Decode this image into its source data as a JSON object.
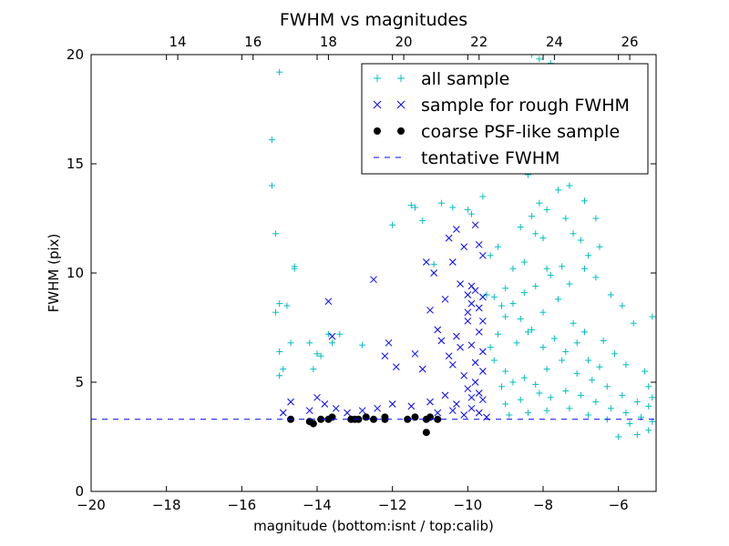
{
  "chart_data": {
    "type": "scatter",
    "title": "FWHM vs magnitudes",
    "xlabel": "magnitude (bottom:isnt / top:calib)",
    "ylabel": "FWHM (pix)",
    "xlim": [
      -20,
      -5
    ],
    "ylim": [
      0,
      20
    ],
    "xticks": [
      -20,
      -18,
      -16,
      -14,
      -12,
      -10,
      -8,
      -6
    ],
    "xtick_labels": [
      "−20",
      "−18",
      "−16",
      "−14",
      "−12",
      "−10",
      "−8",
      "−6"
    ],
    "yticks": [
      0,
      5,
      10,
      15,
      20
    ],
    "ytick_labels": [
      "0",
      "5",
      "10",
      "15",
      "20"
    ],
    "top_axis": {
      "offset_from_bottom": 31.7,
      "ticks": [
        14,
        16,
        18,
        20,
        22,
        24,
        26
      ],
      "tick_labels": [
        "14",
        "16",
        "18",
        "20",
        "22",
        "24",
        "26"
      ]
    },
    "legend": {
      "placement": "top-right",
      "entries": [
        {
          "label": "all sample",
          "marker": "+",
          "color": "#00bfbf"
        },
        {
          "label": "sample for rough FWHM",
          "marker": "x",
          "color": "#0000ff"
        },
        {
          "label": "coarse PSF-like sample",
          "marker": "o",
          "color": "#000000"
        },
        {
          "label": "tentative FWHM",
          "marker": "dashed-line",
          "color": "#0000ff"
        }
      ]
    },
    "tentative_fwhm": 3.3,
    "series": [
      {
        "name": "all sample",
        "marker": "+",
        "color": "#00bfbf",
        "points": [
          [
            -15.2,
            16.1
          ],
          [
            -15.0,
            19.2
          ],
          [
            -15.2,
            14.0
          ],
          [
            -15.1,
            11.8
          ],
          [
            -14.8,
            8.5
          ],
          [
            -15.0,
            8.6
          ],
          [
            -15.1,
            8.2
          ],
          [
            -14.7,
            6.8
          ],
          [
            -15.0,
            6.4
          ],
          [
            -14.6,
            10.3
          ],
          [
            -14.6,
            10.2
          ],
          [
            -14.9,
            5.6
          ],
          [
            -15.0,
            5.3
          ],
          [
            -14.2,
            6.8
          ],
          [
            -14.0,
            6.3
          ],
          [
            -13.9,
            6.2
          ],
          [
            -14.1,
            5.6
          ],
          [
            -13.7,
            7.2
          ],
          [
            -13.4,
            7.2
          ],
          [
            -13.6,
            6.8
          ],
          [
            -12.8,
            6.7
          ],
          [
            -12.0,
            12.2
          ],
          [
            -11.4,
            13.0
          ],
          [
            -11.5,
            13.1
          ],
          [
            -11.2,
            12.4
          ],
          [
            -10.9,
            10.4
          ],
          [
            -10.7,
            13.2
          ],
          [
            -10.4,
            13.0
          ],
          [
            -10.0,
            12.9
          ],
          [
            -9.9,
            12.7
          ],
          [
            -9.6,
            13.5
          ],
          [
            -8.3,
            20.0
          ],
          [
            -8.1,
            19.8
          ],
          [
            -7.8,
            19.6
          ],
          [
            -7.2,
            19.4
          ],
          [
            -9.5,
            9.0
          ],
          [
            -9.3,
            8.9
          ],
          [
            -9.1,
            8.5
          ],
          [
            -9.0,
            9.3
          ],
          [
            -8.8,
            10.2
          ],
          [
            -8.5,
            10.5
          ],
          [
            -8.2,
            11.8
          ],
          [
            -8.0,
            11.6
          ],
          [
            -7.9,
            12.9
          ],
          [
            -7.6,
            13.8
          ],
          [
            -7.4,
            12.5
          ],
          [
            -7.2,
            11.8
          ],
          [
            -7.0,
            11.5
          ],
          [
            -6.8,
            10.8
          ],
          [
            -6.6,
            12.5
          ],
          [
            -6.5,
            11.2
          ],
          [
            -8.9,
            14.8
          ],
          [
            -8.7,
            15.2
          ],
          [
            -8.4,
            14.5
          ],
          [
            -8.1,
            13.2
          ],
          [
            -7.7,
            16.5
          ],
          [
            -7.5,
            15.0
          ],
          [
            -7.3,
            14.0
          ],
          [
            -6.9,
            13.3
          ],
          [
            -9.4,
            10.8
          ],
          [
            -9.2,
            11.2
          ],
          [
            -8.6,
            12.1
          ],
          [
            -8.3,
            12.6
          ],
          [
            -7.9,
            10.2
          ],
          [
            -9.3,
            6.0
          ],
          [
            -9.0,
            5.5
          ],
          [
            -8.7,
            6.8
          ],
          [
            -8.4,
            7.3
          ],
          [
            -8.0,
            8.2
          ],
          [
            -7.6,
            8.8
          ],
          [
            -7.3,
            9.5
          ],
          [
            -6.9,
            10.2
          ],
          [
            -6.6,
            9.8
          ],
          [
            -6.2,
            9.0
          ],
          [
            -5.9,
            8.5
          ],
          [
            -5.6,
            7.7
          ],
          [
            -5.1,
            8.0
          ],
          [
            -9.1,
            4.8
          ],
          [
            -8.8,
            5.0
          ],
          [
            -8.5,
            5.2
          ],
          [
            -8.2,
            4.9
          ],
          [
            -7.9,
            5.6
          ],
          [
            -7.5,
            6.0
          ],
          [
            -7.1,
            5.4
          ],
          [
            -6.7,
            5.1
          ],
          [
            -6.3,
            4.8
          ],
          [
            -5.9,
            4.4
          ],
          [
            -5.5,
            4.1
          ],
          [
            -5.2,
            3.9
          ],
          [
            -9.0,
            4.0
          ],
          [
            -8.6,
            4.2
          ],
          [
            -8.1,
            4.5
          ],
          [
            -7.8,
            4.3
          ],
          [
            -7.4,
            4.6
          ],
          [
            -7.0,
            4.4
          ],
          [
            -6.6,
            4.1
          ],
          [
            -6.2,
            3.8
          ],
          [
            -5.8,
            3.6
          ],
          [
            -5.4,
            3.4
          ],
          [
            -5.1,
            3.2
          ],
          [
            -8.9,
            3.5
          ],
          [
            -8.4,
            3.6
          ],
          [
            -7.9,
            3.7
          ],
          [
            -7.3,
            3.8
          ],
          [
            -6.8,
            3.5
          ],
          [
            -6.3,
            3.3
          ],
          [
            -5.7,
            3.1
          ],
          [
            -5.2,
            2.8
          ],
          [
            -6.0,
            2.5
          ],
          [
            -5.5,
            2.6
          ],
          [
            -8.0,
            6.6
          ],
          [
            -7.7,
            7.0
          ],
          [
            -7.4,
            6.4
          ],
          [
            -7.1,
            6.8
          ],
          [
            -6.8,
            6.0
          ],
          [
            -6.5,
            5.7
          ],
          [
            -8.3,
            7.4
          ],
          [
            -8.6,
            7.9
          ],
          [
            -9.2,
            7.2
          ],
          [
            -9.4,
            6.6
          ],
          [
            -9.0,
            8.0
          ],
          [
            -8.8,
            8.6
          ],
          [
            -8.5,
            9.1
          ],
          [
            -8.2,
            9.4
          ],
          [
            -7.8,
            9.9
          ],
          [
            -7.5,
            10.3
          ],
          [
            -7.2,
            7.7
          ],
          [
            -6.9,
            7.3
          ],
          [
            -6.4,
            6.9
          ],
          [
            -6.1,
            6.3
          ],
          [
            -5.8,
            5.8
          ],
          [
            -5.3,
            5.5
          ],
          [
            -5.2,
            4.8
          ],
          [
            -5.1,
            4.3
          ]
        ]
      },
      {
        "name": "sample for rough FWHM",
        "marker": "x",
        "color": "#0000ff",
        "points": [
          [
            -14.9,
            3.6
          ],
          [
            -14.7,
            4.1
          ],
          [
            -14.2,
            3.7
          ],
          [
            -14.0,
            4.3
          ],
          [
            -13.8,
            4.0
          ],
          [
            -13.5,
            3.8
          ],
          [
            -13.7,
            8.7
          ],
          [
            -13.6,
            7.1
          ],
          [
            -12.5,
            9.7
          ],
          [
            -12.2,
            6.2
          ],
          [
            -12.1,
            6.8
          ],
          [
            -11.9,
            5.7
          ],
          [
            -11.4,
            6.3
          ],
          [
            -11.2,
            5.6
          ],
          [
            -11.1,
            10.5
          ],
          [
            -11.0,
            8.3
          ],
          [
            -10.9,
            10.0
          ],
          [
            -10.8,
            7.4
          ],
          [
            -10.6,
            8.8
          ],
          [
            -10.5,
            11.6
          ],
          [
            -10.4,
            10.5
          ],
          [
            -10.3,
            12.0
          ],
          [
            -10.2,
            9.5
          ],
          [
            -10.1,
            11.2
          ],
          [
            -10.0,
            8.2
          ],
          [
            -9.9,
            9.4
          ],
          [
            -9.8,
            12.2
          ],
          [
            -9.7,
            11.3
          ],
          [
            -9.6,
            10.8
          ],
          [
            -10.7,
            6.9
          ],
          [
            -10.5,
            6.2
          ],
          [
            -10.4,
            5.8
          ],
          [
            -10.3,
            7.1
          ],
          [
            -10.2,
            6.6
          ],
          [
            -10.1,
            5.3
          ],
          [
            -10.0,
            7.8
          ],
          [
            -9.9,
            6.7
          ],
          [
            -9.8,
            5.9
          ],
          [
            -9.7,
            7.3
          ],
          [
            -9.6,
            6.4
          ],
          [
            -10.0,
            4.7
          ],
          [
            -9.9,
            4.3
          ],
          [
            -9.8,
            5.0
          ],
          [
            -9.7,
            4.5
          ],
          [
            -9.6,
            4.2
          ],
          [
            -10.3,
            4.0
          ],
          [
            -10.6,
            4.4
          ],
          [
            -11.0,
            4.1
          ],
          [
            -11.5,
            3.9
          ],
          [
            -12.0,
            4.0
          ],
          [
            -12.4,
            3.8
          ],
          [
            -12.8,
            3.7
          ],
          [
            -13.2,
            3.6
          ],
          [
            -10.8,
            3.6
          ],
          [
            -10.4,
            3.7
          ],
          [
            -10.1,
            3.5
          ],
          [
            -9.9,
            3.8
          ],
          [
            -9.7,
            3.6
          ],
          [
            -9.5,
            3.4
          ],
          [
            -10.0,
            9.0
          ],
          [
            -9.9,
            8.6
          ],
          [
            -9.8,
            9.2
          ],
          [
            -9.7,
            8.4
          ],
          [
            -9.6,
            8.9
          ],
          [
            -9.6,
            7.8
          ],
          [
            -9.6,
            5.5
          ]
        ]
      },
      {
        "name": "coarse PSF-like sample",
        "marker": "o",
        "color": "#000000",
        "points": [
          [
            -14.7,
            3.3
          ],
          [
            -14.2,
            3.2
          ],
          [
            -14.1,
            3.1
          ],
          [
            -13.9,
            3.3
          ],
          [
            -13.7,
            3.3
          ],
          [
            -13.6,
            3.4
          ],
          [
            -13.1,
            3.3
          ],
          [
            -13.0,
            3.3
          ],
          [
            -12.9,
            3.3
          ],
          [
            -12.7,
            3.4
          ],
          [
            -12.5,
            3.3
          ],
          [
            -12.2,
            3.3
          ],
          [
            -12.2,
            3.4
          ],
          [
            -11.6,
            3.3
          ],
          [
            -11.4,
            3.4
          ],
          [
            -11.1,
            3.3
          ],
          [
            -11.0,
            3.4
          ],
          [
            -11.1,
            2.7
          ],
          [
            -10.8,
            3.3
          ]
        ]
      }
    ]
  }
}
